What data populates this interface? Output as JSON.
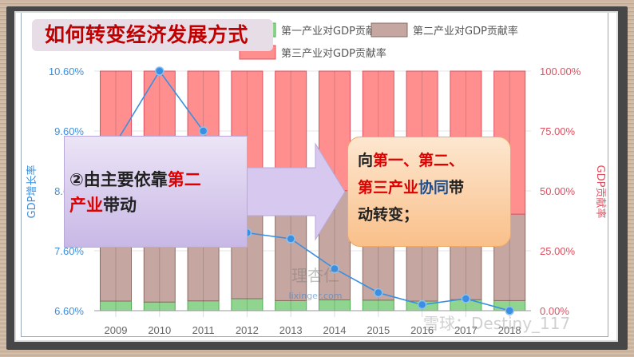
{
  "title": "如何转变经济发展方式",
  "callout_left": {
    "prefix": "②由主要依靠",
    "red1": "第二",
    "red2": "产业",
    "suffix": "带动"
  },
  "callout_right": {
    "p1": "向",
    "r1": "第一、第二、",
    "r2": "第三产业",
    "b1": "协同",
    "p2": "带",
    "p3": "动转变；"
  },
  "watermarks": [
    "理杏仁",
    "lixinger.com",
    "雪球：Destiny_117"
  ],
  "colors": {
    "primary": "#8fd48f",
    "secondary": "#c6a6a0",
    "tertiary": "#ff8f8f",
    "line": "#3b8fe0",
    "left_axis": "#3b8fe0",
    "right_axis": "#e05060"
  },
  "chart_data": {
    "type": "bar+line",
    "categories": [
      "2009",
      "2010",
      "2011",
      "2012",
      "2013",
      "2014",
      "2015",
      "2016",
      "2017",
      "2018"
    ],
    "series": [
      {
        "name": "第一产业对GDP贡献率",
        "type": "stacked-bar",
        "axis": "right",
        "values": [
          4.0,
          3.6,
          4.1,
          5.0,
          4.2,
          4.5,
          4.4,
          4.0,
          4.6,
          4.2
        ]
      },
      {
        "name": "第二产业对GDP贡献率",
        "type": "stacked-bar",
        "axis": "right",
        "values": [
          52.3,
          57.4,
          52.0,
          50.0,
          48.5,
          45.6,
          39.7,
          36.0,
          34.2,
          36.1
        ]
      },
      {
        "name": "第三产业对GDP贡献率",
        "type": "stacked-bar",
        "axis": "right",
        "values": [
          43.7,
          39.0,
          43.9,
          45.0,
          47.3,
          49.9,
          55.9,
          60.0,
          61.2,
          59.7
        ]
      },
      {
        "name": "GDP增长率",
        "type": "line",
        "axis": "left",
        "values": [
          9.4,
          10.6,
          9.6,
          7.9,
          7.8,
          7.3,
          6.9,
          6.7,
          6.8,
          6.6
        ]
      }
    ],
    "ylabel_left": "GDP增长率",
    "ylabel_right": "GDP贡献率",
    "yticks_left": [
      "6.60%",
      "7.60%",
      "8.60%",
      "9.60%",
      "10.60%"
    ],
    "yticks_right": [
      "0.00%",
      "25.00%",
      "50.00%",
      "75.00%",
      "100.00%"
    ],
    "ylim_left": [
      6.6,
      10.6
    ],
    "ylim_right": [
      0,
      100
    ],
    "legend_position": "top"
  }
}
